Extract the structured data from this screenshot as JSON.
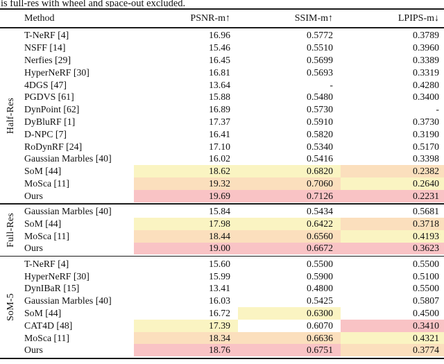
{
  "caption_fragment": "is full-res with wheel and space-out excluded.",
  "table": {
    "columns": [
      "Method",
      "PSNR-m↑",
      "SSIM-m↑",
      "LPIPS-m↓"
    ],
    "highlight_colors": {
      "best": "#F9C3C5",
      "second": "#FBDFBD",
      "third": "#FAF4C2"
    },
    "sections": [
      {
        "label": "Half-Res",
        "rows": [
          {
            "method": "T-NeRF [4]",
            "psnr": "16.96",
            "ssim": "0.5772",
            "lpips": "0.3789",
            "hl": [
              null,
              null,
              null
            ]
          },
          {
            "method": "NSFF [14]",
            "psnr": "15.46",
            "ssim": "0.5510",
            "lpips": "0.3960",
            "hl": [
              null,
              null,
              null
            ]
          },
          {
            "method": "Nerfies [29]",
            "psnr": "16.45",
            "ssim": "0.5699",
            "lpips": "0.3389",
            "hl": [
              null,
              null,
              null
            ]
          },
          {
            "method": "HyperNeRF [30]",
            "psnr": "16.81",
            "ssim": "0.5693",
            "lpips": "0.3319",
            "hl": [
              null,
              null,
              null
            ]
          },
          {
            "method": "4DGS [47]",
            "psnr": "13.64",
            "ssim": "-",
            "lpips": "0.4280",
            "hl": [
              null,
              null,
              null
            ]
          },
          {
            "method": "PGDVS [61]",
            "psnr": "15.88",
            "ssim": "0.5480",
            "lpips": "0.3400",
            "hl": [
              null,
              null,
              null
            ]
          },
          {
            "method": "DynPoint [62]",
            "psnr": "16.89",
            "ssim": "0.5730",
            "lpips": "-",
            "hl": [
              null,
              null,
              null
            ]
          },
          {
            "method": "DyBluRF [1]",
            "psnr": "17.37",
            "ssim": "0.5910",
            "lpips": "0.3730",
            "hl": [
              null,
              null,
              null
            ]
          },
          {
            "method": "D-NPC [7]",
            "psnr": "16.41",
            "ssim": "0.5820",
            "lpips": "0.3190",
            "hl": [
              null,
              null,
              null
            ]
          },
          {
            "method": "RoDynRF [24]",
            "psnr": "17.10",
            "ssim": "0.5340",
            "lpips": "0.5170",
            "hl": [
              null,
              null,
              null
            ]
          },
          {
            "method": "Gaussian Marbles [40]",
            "psnr": "16.02",
            "ssim": "0.5416",
            "lpips": "0.3398",
            "hl": [
              null,
              null,
              null
            ]
          },
          {
            "method": "SoM [44]",
            "psnr": "18.62",
            "ssim": "0.6820",
            "lpips": "0.2382",
            "hl": [
              "third",
              "third",
              "second"
            ]
          },
          {
            "method": "MoSca [11]",
            "psnr": "19.32",
            "ssim": "0.7060",
            "lpips": "0.2640",
            "hl": [
              "second",
              "second",
              "third"
            ]
          },
          {
            "method": "Ours",
            "psnr": "19.69",
            "ssim": "0.7126",
            "lpips": "0.2231",
            "hl": [
              "best",
              "best",
              "best"
            ]
          }
        ]
      },
      {
        "label": "Full-Res",
        "rows": [
          {
            "method": "Gaussian Marbles [40]",
            "psnr": "15.84",
            "ssim": "0.5434",
            "lpips": "0.5681",
            "hl": [
              null,
              null,
              null
            ]
          },
          {
            "method": "SoM [44]",
            "psnr": "17.98",
            "ssim": "0.6422",
            "lpips": "0.3718",
            "hl": [
              "third",
              "third",
              "second"
            ]
          },
          {
            "method": "MoSca [11]",
            "psnr": "18.44",
            "ssim": "0.6560",
            "lpips": "0.4193",
            "hl": [
              "second",
              "second",
              "third"
            ]
          },
          {
            "method": "Ours",
            "psnr": "19.00",
            "ssim": "0.6672",
            "lpips": "0.3623",
            "hl": [
              "best",
              "best",
              "best"
            ]
          }
        ]
      },
      {
        "label": "SoM-5",
        "rows": [
          {
            "method": "T-NeRF [4]",
            "psnr": "15.60",
            "ssim": "0.5500",
            "lpips": "0.5500",
            "hl": [
              null,
              null,
              null
            ]
          },
          {
            "method": "HyperNeRF [30]",
            "psnr": "15.99",
            "ssim": "0.5900",
            "lpips": "0.5100",
            "hl": [
              null,
              null,
              null
            ]
          },
          {
            "method": "DynIBaR [15]",
            "psnr": "13.41",
            "ssim": "0.4800",
            "lpips": "0.5500",
            "hl": [
              null,
              null,
              null
            ]
          },
          {
            "method": "Gaussian Marbles [40]",
            "psnr": "16.03",
            "ssim": "0.5425",
            "lpips": "0.5807",
            "hl": [
              null,
              null,
              null
            ]
          },
          {
            "method": "SoM [44]",
            "psnr": "16.72",
            "ssim": "0.6300",
            "lpips": "0.4500",
            "hl": [
              null,
              "third",
              null
            ]
          },
          {
            "method": "CAT4D [48]",
            "psnr": "17.39",
            "ssim": "0.6070",
            "lpips": "0.3410",
            "hl": [
              "third",
              null,
              "best"
            ]
          },
          {
            "method": "MoSca [11]",
            "psnr": "18.34",
            "ssim": "0.6636",
            "lpips": "0.4321",
            "hl": [
              "second",
              "second",
              "third"
            ]
          },
          {
            "method": "Ours",
            "psnr": "18.76",
            "ssim": "0.6751",
            "lpips": "0.3774",
            "hl": [
              "best",
              "best",
              "second"
            ]
          }
        ]
      }
    ]
  }
}
